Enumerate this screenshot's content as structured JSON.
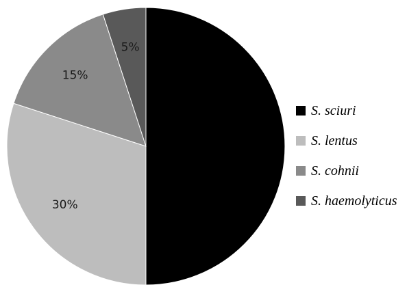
{
  "chart_data": {
    "type": "pie",
    "start_angle_deg": 0,
    "direction": "clockwise",
    "slices": [
      {
        "name": "S. sciuri",
        "value": 50,
        "label": "",
        "color": "#000000"
      },
      {
        "name": "S. lentus",
        "value": 30,
        "label": "30%",
        "color": "#bdbdbd"
      },
      {
        "name": "S. cohnii",
        "value": 15,
        "label": "15%",
        "color": "#8a8a8a"
      },
      {
        "name": "S. haemolyticus",
        "value": 5,
        "label": "5%",
        "color": "#595959"
      }
    ],
    "legend_position": "right"
  }
}
